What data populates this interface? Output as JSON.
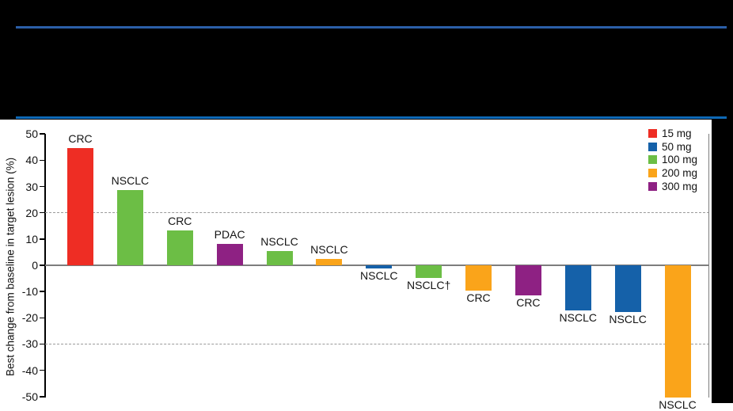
{
  "page": {
    "background_color": "#000000"
  },
  "header": {
    "rule_top_color": "#2B5FA8",
    "rule_bottom_color": "#0E69B6"
  },
  "chart_data": {
    "type": "bar",
    "subtype": "waterfall",
    "title": "",
    "ylabel": "Best change from baseline in target lesion (%)",
    "ylim": [
      -50,
      50
    ],
    "yticks": [
      50,
      40,
      30,
      20,
      10,
      0,
      -10,
      -20,
      -30,
      -40,
      -50
    ],
    "reference_lines_dashed": [
      20,
      -30
    ],
    "zero_line": true,
    "grid": "dashed-reference-only",
    "legend_position": "top-right",
    "legend_title": "",
    "legend": [
      {
        "label": "15 mg",
        "color": "#EE2D24"
      },
      {
        "label": "50 mg",
        "color": "#1561A9"
      },
      {
        "label": "100 mg",
        "color": "#6CBE45"
      },
      {
        "label": "200 mg",
        "color": "#FAA41A"
      },
      {
        "label": "300 mg",
        "color": "#8E2183"
      }
    ],
    "bars": [
      {
        "label": "CRC",
        "dose": "15 mg",
        "value": 44.5
      },
      {
        "label": "NSCLC",
        "dose": "100 mg",
        "value": 28.5
      },
      {
        "label": "CRC",
        "dose": "100 mg",
        "value": 13.2
      },
      {
        "label": "PDAC",
        "dose": "300 mg",
        "value": 8.1
      },
      {
        "label": "NSCLC",
        "dose": "100 mg",
        "value": 5.3
      },
      {
        "label": "NSCLC",
        "dose": "200 mg",
        "value": 2.3
      },
      {
        "label": "NSCLC",
        "dose": "50 mg",
        "value": -1.2
      },
      {
        "label": "NSCLC†",
        "dose": "100 mg",
        "value": -4.7
      },
      {
        "label": "CRC",
        "dose": "200 mg",
        "value": -9.5
      },
      {
        "label": "CRC",
        "dose": "300 mg",
        "value": -11.5
      },
      {
        "label": "NSCLC",
        "dose": "50 mg",
        "value": -17.1
      },
      {
        "label": "NSCLC",
        "dose": "50 mg",
        "value": -17.8
      },
      {
        "label": "NSCLC",
        "dose": "200 mg",
        "value": -50.5
      }
    ]
  }
}
